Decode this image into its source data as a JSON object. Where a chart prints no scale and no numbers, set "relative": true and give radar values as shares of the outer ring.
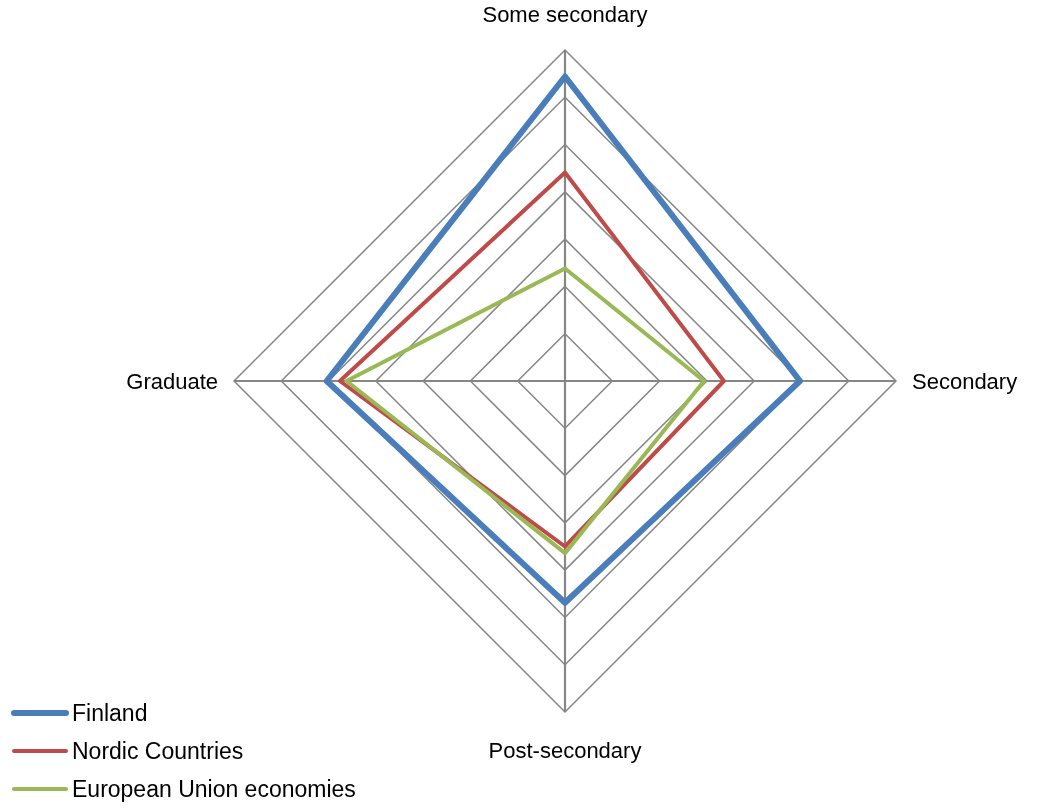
{
  "chart_data": {
    "type": "radar",
    "relative": true,
    "grid": true,
    "legend": "bottom left",
    "categories": [
      "Some secondary",
      "Secondary",
      "Post-secondary",
      "Graduate"
    ],
    "series": [
      {
        "name": "Finland",
        "color": "#4a7ebb",
        "values": [
          0.92,
          0.71,
          0.67,
          0.72
        ]
      },
      {
        "name": "Nordic Countries",
        "color": "#be4b48",
        "values": [
          0.63,
          0.48,
          0.5,
          0.68
        ]
      },
      {
        "name": "European Union economies",
        "color": "#98b954",
        "values": [
          0.34,
          0.42,
          0.52,
          0.66
        ]
      }
    ]
  }
}
